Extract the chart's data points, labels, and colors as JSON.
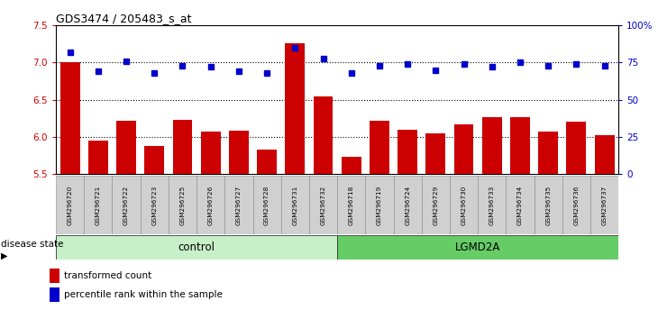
{
  "title": "GDS3474 / 205483_s_at",
  "samples": [
    "GSM296720",
    "GSM296721",
    "GSM296722",
    "GSM296723",
    "GSM296725",
    "GSM296726",
    "GSM296727",
    "GSM296728",
    "GSM296731",
    "GSM296732",
    "GSM296718",
    "GSM296719",
    "GSM296724",
    "GSM296729",
    "GSM296730",
    "GSM296733",
    "GSM296734",
    "GSM296735",
    "GSM296736",
    "GSM296737"
  ],
  "bar_values": [
    7.0,
    5.95,
    6.22,
    5.87,
    6.23,
    6.07,
    6.08,
    5.83,
    7.26,
    6.55,
    5.73,
    6.22,
    6.1,
    6.05,
    6.17,
    6.27,
    6.27,
    6.07,
    6.2,
    6.02
  ],
  "dot_values": [
    82,
    69,
    76,
    68,
    73,
    72,
    69,
    68,
    85,
    78,
    68,
    73,
    74,
    70,
    74,
    72,
    75,
    73,
    74,
    73
  ],
  "control_count": 10,
  "lgmd_count": 10,
  "ylim_left": [
    5.5,
    7.5
  ],
  "ylim_right": [
    0,
    100
  ],
  "yticks_left": [
    5.5,
    6.0,
    6.5,
    7.0,
    7.5
  ],
  "yticks_right": [
    0,
    25,
    50,
    75,
    100
  ],
  "ytick_labels_right": [
    "0",
    "25",
    "50",
    "75",
    "100%"
  ],
  "bar_color": "#cc0000",
  "dot_color": "#0000cc",
  "control_color_light": "#ccf0cc",
  "lgmd_color_dark": "#55cc55",
  "legend_bar_label": "transformed count",
  "legend_dot_label": "percentile rank within the sample",
  "disease_state_label": "disease state",
  "control_label": "control",
  "lgmd_label": "LGMD2A",
  "hline_values": [
    6.0,
    6.5,
    7.0
  ]
}
